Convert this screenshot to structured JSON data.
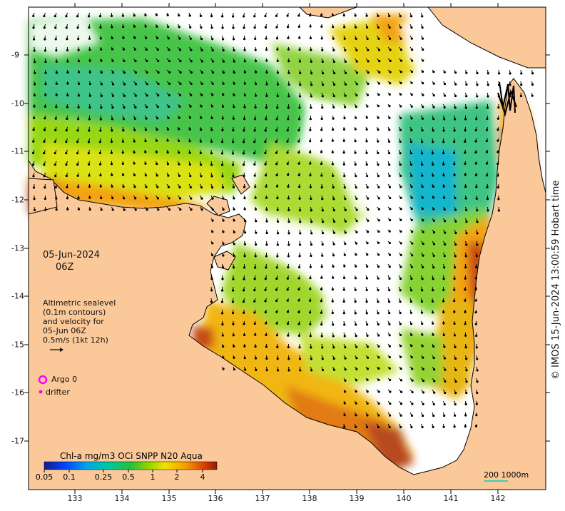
{
  "map": {
    "date": "05-Jun-2024",
    "time": "06Z",
    "legend": {
      "lines": [
        "Altimetric sealevel",
        "(0.1m contours)",
        "and velocity for",
        "05-Jun 06Z",
        "0.5m/s (1kt 12h)"
      ]
    },
    "markers": {
      "argo": "Argo 0",
      "drifter": "drifter"
    },
    "colorbar": {
      "title": "Chl-a mg/m3 OCi SNPP N20 Aqua",
      "ticks": [
        "0.05",
        "0.1",
        "0.25",
        "0.5",
        "1",
        "2",
        "4"
      ]
    },
    "scale": "200  1000m",
    "credit": "© IMOS 15-Jun-2024 13:00:59 Hobart time",
    "x_ticks": [
      "133",
      "134",
      "135",
      "136",
      "137",
      "138",
      "139",
      "140",
      "141",
      "142"
    ],
    "y_ticks": [
      "-9",
      "-10",
      "-11",
      "-12",
      "-13",
      "-14",
      "-15",
      "-16",
      "-17"
    ],
    "colors": {
      "land": "#fbc999",
      "ocean": "#ffffff",
      "arrow": "#000000",
      "argo": "#ff00ff"
    }
  }
}
